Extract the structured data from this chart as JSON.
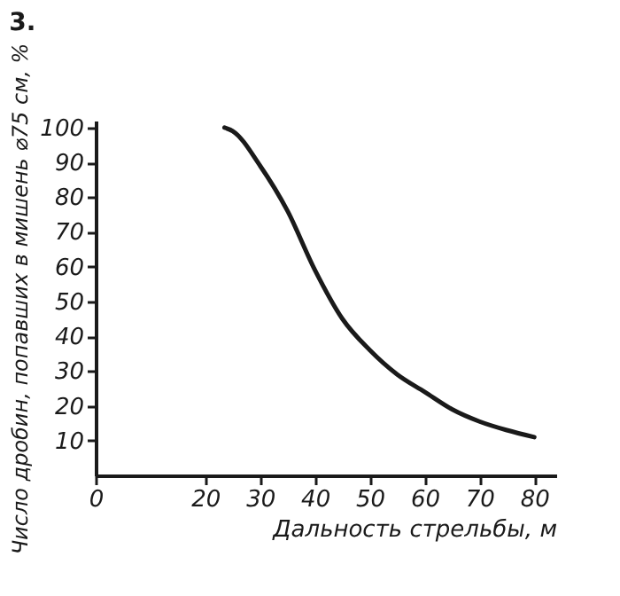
{
  "chart_data": {
    "type": "line",
    "title": "3.",
    "xlabel": "Дальность стрельбы, м",
    "ylabel": "Число дробин, попавших в мишень ⌀75 см, %",
    "x": [
      23.5,
      25,
      30,
      35,
      40,
      45,
      50,
      55,
      60,
      65,
      70,
      75,
      80
    ],
    "series": [
      {
        "color": "#1a1a1a",
        "values": [
          100,
          99,
          89,
          76,
          59,
          45,
          36,
          29,
          24,
          19,
          15.5,
          13,
          11
        ]
      }
    ],
    "xlim": [
      0,
      84
    ],
    "xticks": [
      0,
      20,
      30,
      40,
      50,
      60,
      70,
      80
    ],
    "ylim": [
      0,
      102
    ],
    "yticks": [
      10,
      20,
      30,
      40,
      50,
      60,
      70,
      80,
      90,
      100
    ],
    "grid": false,
    "marker": "none",
    "line_style": "solid"
  }
}
